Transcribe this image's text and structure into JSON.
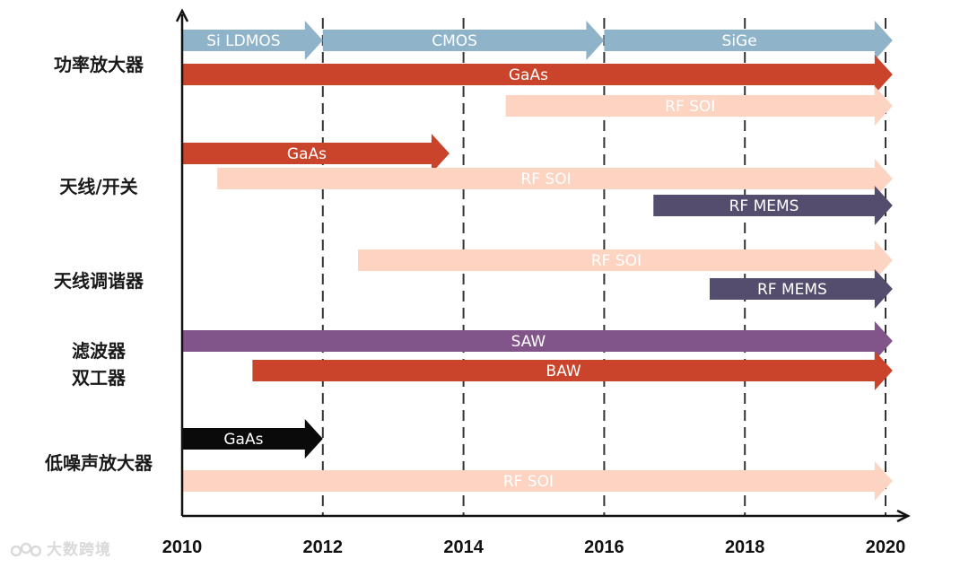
{
  "chart_data": {
    "type": "timeline",
    "x_axis": {
      "ticks": [
        2010,
        2012,
        2014,
        2016,
        2018,
        2020
      ],
      "range": [
        2010,
        2020.1
      ]
    },
    "categories": [
      {
        "key": "pa",
        "lines": [
          "功率放大器"
        ]
      },
      {
        "key": "switch",
        "lines": [
          "天线/开关"
        ]
      },
      {
        "key": "tuner",
        "lines": [
          "天线调谐器"
        ]
      },
      {
        "key": "filter",
        "lines": [
          "滤波器",
          "双工器"
        ]
      },
      {
        "key": "lna",
        "lines": [
          "低噪声放大器"
        ]
      }
    ],
    "bars": [
      {
        "category": "pa",
        "label": "Si LDMOS",
        "start": 2010.0,
        "end": 2012.0,
        "color": "#8fb3c8",
        "text_color": "#ffffff"
      },
      {
        "category": "pa",
        "label": "CMOS",
        "start": 2012.0,
        "end": 2016.0,
        "color": "#8fb3c8",
        "text_color": "#ffffff"
      },
      {
        "category": "pa",
        "label": "SiGe",
        "start": 2016.0,
        "end": 2020.1,
        "color": "#8fb3c8",
        "text_color": "#ffffff"
      },
      {
        "category": "pa",
        "label": "GaAs",
        "start": 2010.0,
        "end": 2020.1,
        "color": "#c9442a",
        "text_color": "#ffffff"
      },
      {
        "category": "pa",
        "label": "RF SOI",
        "start": 2014.6,
        "end": 2020.1,
        "color": "#fdd3c1",
        "text_color": "#ffffff"
      },
      {
        "category": "switch",
        "label": "GaAs",
        "start": 2010.0,
        "end": 2013.8,
        "color": "#c9442a",
        "text_color": "#ffffff"
      },
      {
        "category": "switch",
        "label": "RF SOI",
        "start": 2010.5,
        "end": 2020.1,
        "color": "#fdd3c1",
        "text_color": "#ffffff"
      },
      {
        "category": "switch",
        "label": "RF MEMS",
        "start": 2016.7,
        "end": 2020.1,
        "color": "#544d6e",
        "text_color": "#ffffff"
      },
      {
        "category": "tuner",
        "label": "RF SOI",
        "start": 2012.5,
        "end": 2020.1,
        "color": "#fdd3c1",
        "text_color": "#ffffff"
      },
      {
        "category": "tuner",
        "label": "RF MEMS",
        "start": 2017.5,
        "end": 2020.1,
        "color": "#544d6e",
        "text_color": "#ffffff"
      },
      {
        "category": "filter",
        "label": "SAW",
        "start": 2010.0,
        "end": 2020.1,
        "color": "#82558a",
        "text_color": "#ffffff"
      },
      {
        "category": "filter",
        "label": "BAW",
        "start": 2011.0,
        "end": 2020.1,
        "color": "#c9442a",
        "text_color": "#ffffff"
      },
      {
        "category": "lna",
        "label": "GaAs",
        "start": 2010.0,
        "end": 2012.0,
        "color": "#0a0a0a",
        "text_color": "#ffffff"
      },
      {
        "category": "lna",
        "label": "RF SOI",
        "start": 2010.0,
        "end": 2020.1,
        "color": "#fdd3c1",
        "text_color": "#ffffff"
      }
    ]
  },
  "watermark": {
    "text": "大数跨境"
  }
}
